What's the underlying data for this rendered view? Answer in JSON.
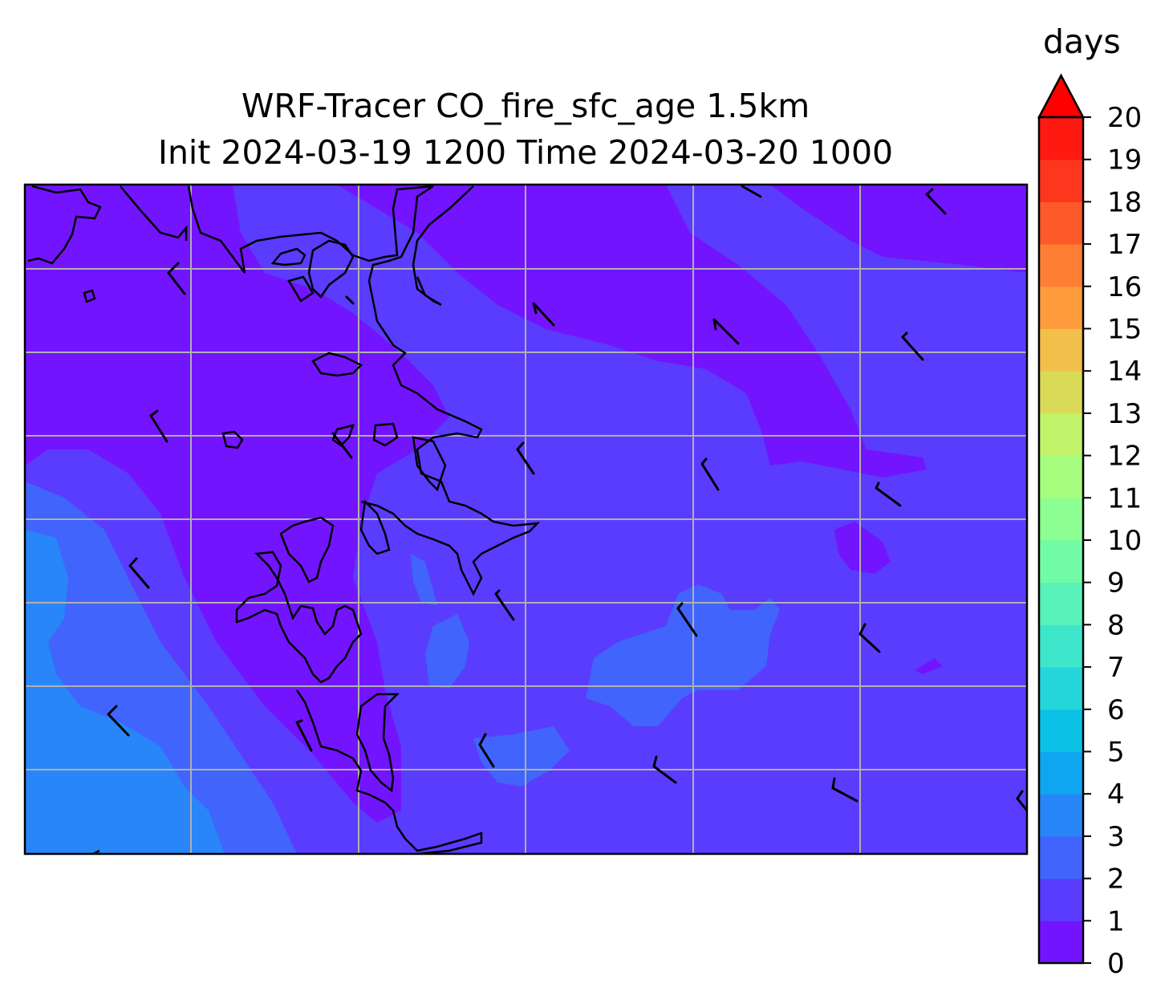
{
  "title_line1": "WRF-Tracer CO_fire_sfc_age 1.5km",
  "title_line2": "Init 2024-03-19 1200 Time 2024-03-20 1000",
  "colorbar": {
    "unit": "days",
    "ticks": [
      "0",
      "1",
      "2",
      "3",
      "4",
      "5",
      "6",
      "7",
      "8",
      "9",
      "10",
      "11",
      "12",
      "13",
      "14",
      "15",
      "16",
      "17",
      "18",
      "19",
      "20"
    ],
    "colors": [
      "#7314fe",
      "#5a3cfe",
      "#4164fc",
      "#2886f8",
      "#0ea6f0",
      "#0bc2e6",
      "#24d6d9",
      "#3ee6cb",
      "#58f2ba",
      "#72fba6",
      "#8cfe92",
      "#a6fc7d",
      "#c0f26a",
      "#d9db58",
      "#f2c04a",
      "#fe9c3d",
      "#fe7f33",
      "#fe5a29",
      "#fe361d",
      "#fe1a10"
    ],
    "extend": "max",
    "extend_color": "#ff0000"
  },
  "map": {
    "field": "CO_fire_sfc_age",
    "grid": true,
    "features": [
      "coastline",
      "wind-barbs"
    ]
  }
}
